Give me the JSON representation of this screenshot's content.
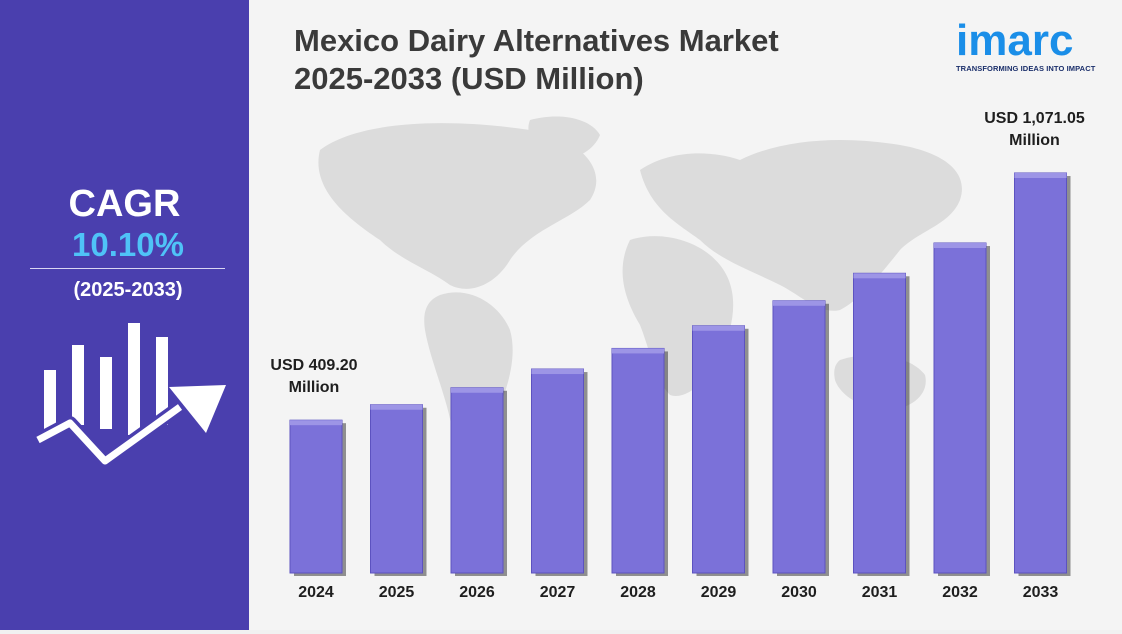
{
  "title_lines": [
    "Mexico Dairy Alternatives Market",
    "2025-2033 (USD Million)"
  ],
  "logo": {
    "name": "imarc",
    "tagline": "TRANSFORMING IDEAS INTO IMPACT"
  },
  "cagr": {
    "label": "CAGR",
    "value": "10.10%",
    "period": "(2025-2033)"
  },
  "colors": {
    "sidebar": "#4a3fae",
    "cagr_value": "#4fc3f7",
    "bar": "#7b71d9",
    "bar_top": "#9d95e6",
    "logo": "#1a8ee8"
  },
  "icons": {
    "growth": "bar-growth-arrow-icon",
    "background": "world-map-icon"
  },
  "chart_data": {
    "type": "bar",
    "categories": [
      "2024",
      "2025",
      "2026",
      "2027",
      "2028",
      "2029",
      "2030",
      "2031",
      "2032",
      "2033"
    ],
    "values": [
      409.2,
      450.5,
      496.0,
      546.1,
      601.3,
      662.0,
      728.9,
      802.5,
      883.6,
      1071.05
    ],
    "annotations": [
      {
        "category": "2024",
        "lines": [
          "USD 409.20",
          "Million"
        ]
      },
      {
        "category": "2033",
        "lines": [
          "USD 1,071.05",
          "Million"
        ]
      }
    ],
    "ylim": [
      0,
      1100
    ],
    "grid": false,
    "legend": "none",
    "axis_labels_visible": false
  }
}
